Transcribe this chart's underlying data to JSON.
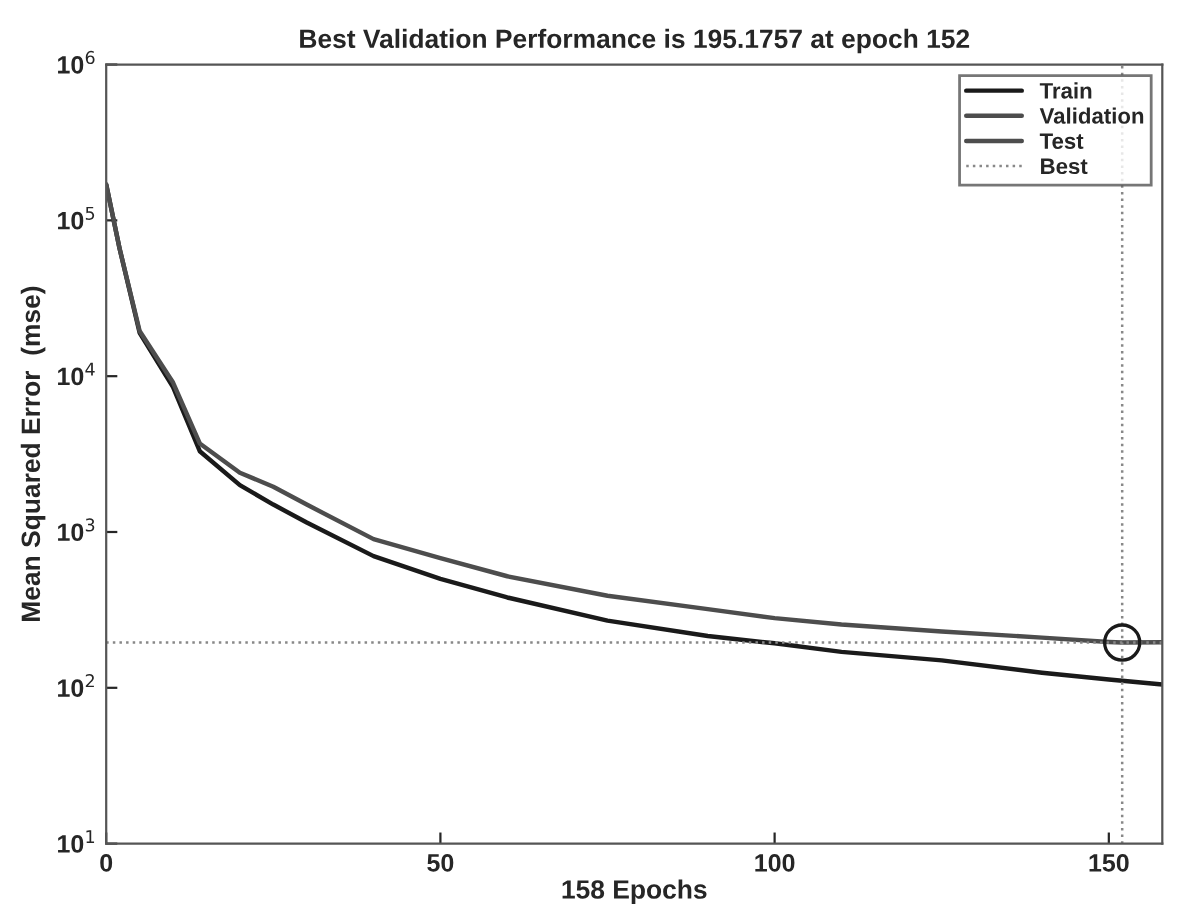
{
  "chart_data": {
    "type": "line",
    "title": "Best Validation Performance is 195.1757 at epoch 152",
    "xlabel": "158 Epochs",
    "ylabel": "Mean Squared Error  (mse)",
    "x": [
      0,
      2,
      5,
      10,
      14,
      20,
      25,
      30,
      40,
      50,
      60,
      75,
      90,
      100,
      110,
      125,
      140,
      150,
      152,
      158
    ],
    "series": [
      {
        "name": "Train",
        "color": "#1a1a1a",
        "values": [
          170000,
          66000,
          19000,
          8500,
          3300,
          2000,
          1500,
          1150,
          700,
          500,
          380,
          270,
          215,
          193,
          170,
          150,
          125,
          113,
          111,
          105
        ]
      },
      {
        "name": "Validation",
        "color": "#4d4d4d",
        "values": [
          170000,
          66000,
          19500,
          9100,
          3700,
          2400,
          1950,
          1500,
          900,
          680,
          520,
          390,
          320,
          280,
          255,
          230,
          210,
          197,
          195.1757,
          196
        ]
      },
      {
        "name": "Test",
        "color": "#4d4d4d",
        "values": [
          null,
          null,
          null,
          null,
          null,
          null,
          null,
          null,
          null,
          null,
          null,
          null,
          null,
          null,
          null,
          null,
          null,
          null,
          null,
          null
        ]
      },
      {
        "type": "scatter",
        "x": [
          152
        ],
        "values": [
          195.1757
        ],
        "color": "#1a1a1a",
        "marker": "circle"
      }
    ],
    "ref_lines": [
      {
        "axis": "x",
        "value": 152,
        "label": "Best",
        "color": "#888888",
        "line_style": "dotted"
      },
      {
        "axis": "y",
        "value": 195.1757,
        "color": "#888888",
        "line_style": "dotted"
      }
    ],
    "log": "y",
    "xlim": [
      0,
      158
    ],
    "xticks": [
      0,
      50,
      100,
      150
    ],
    "ylim": [
      10,
      1000000
    ],
    "yticks": [
      {
        "value": 10,
        "label": "10$^{1}$"
      },
      {
        "value": 100,
        "label": "10$^{2}$"
      },
      {
        "value": 1000,
        "label": "10$^{3}$"
      },
      {
        "value": 10000,
        "label": "10$^{4}$"
      },
      {
        "value": 100000,
        "label": "10$^{5}$"
      },
      {
        "value": 1000000,
        "label": "10$^{6}$"
      }
    ],
    "grid": false,
    "legend": "top right",
    "line_style": "solid"
  }
}
